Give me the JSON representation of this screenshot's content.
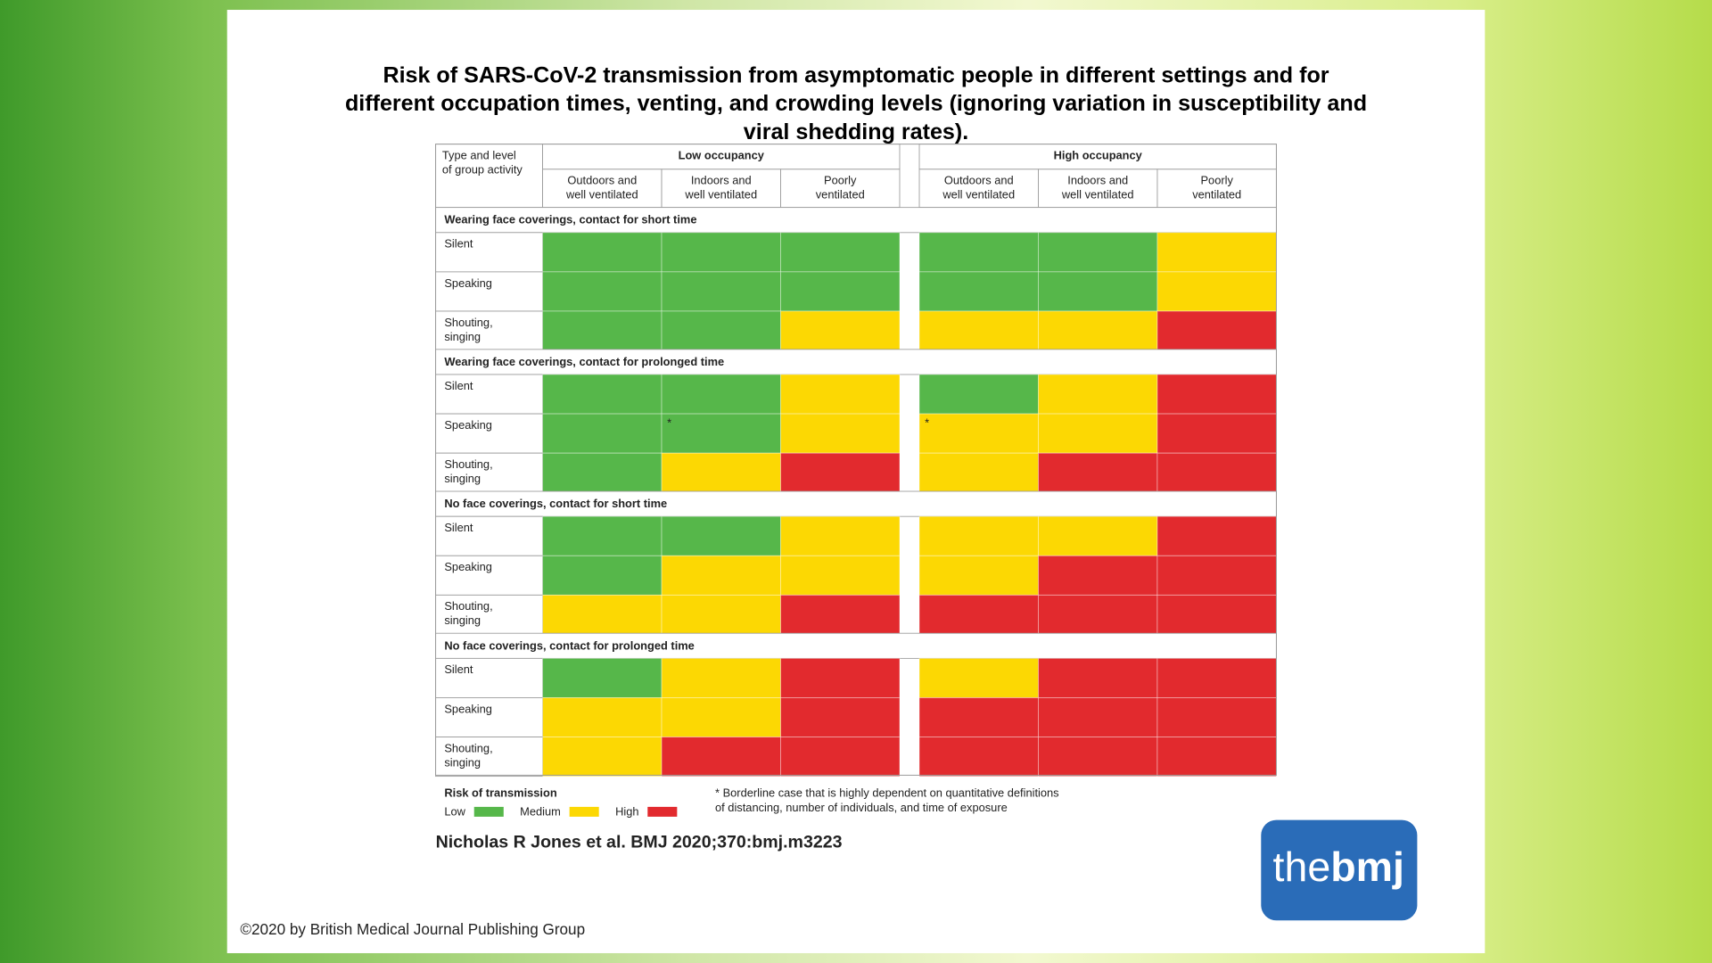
{
  "title": [
    "Risk of SARS-CoV-2 transmission from asymptomatic people in different settings and for",
    "different occupation times, venting, and crowding levels (ignoring variation in susceptibility  and",
    "viral shedding rates)."
  ],
  "table": {
    "corner": [
      "Type and level",
      "of group activity"
    ],
    "occupancy": [
      "Low occupancy",
      "High occupancy"
    ],
    "settings": [
      [
        "Outdoors and",
        "well ventilated"
      ],
      [
        "Indoors and",
        "well ventilated"
      ],
      [
        "Poorly",
        "ventilated"
      ]
    ],
    "activities": [
      [
        "Silent"
      ],
      [
        "Speaking"
      ],
      [
        "Shouting,",
        "singing"
      ]
    ],
    "groups": [
      {
        "name": "Wearing face coverings, contact for short time",
        "rows": [
          [
            0,
            0,
            0,
            0,
            0,
            1
          ],
          [
            0,
            0,
            0,
            0,
            0,
            1
          ],
          [
            0,
            0,
            1,
            1,
            1,
            2
          ]
        ]
      },
      {
        "name": "Wearing face coverings, contact for prolonged time",
        "rows": [
          [
            0,
            0,
            1,
            0,
            1,
            2
          ],
          [
            0,
            {
              "level": 0,
              "note": "*"
            },
            1,
            {
              "level": 1,
              "note": "*"
            },
            1,
            2
          ],
          [
            0,
            1,
            2,
            1,
            2,
            2
          ]
        ]
      },
      {
        "name": "No face coverings, contact for short time",
        "rows": [
          [
            0,
            0,
            1,
            1,
            1,
            2
          ],
          [
            0,
            1,
            1,
            1,
            2,
            2
          ],
          [
            1,
            1,
            2,
            2,
            2,
            2
          ]
        ]
      },
      {
        "name": "No face coverings, contact for prolonged time",
        "rows": [
          [
            0,
            1,
            2,
            1,
            2,
            2
          ],
          [
            1,
            1,
            2,
            2,
            2,
            2
          ],
          [
            1,
            2,
            2,
            2,
            2,
            2
          ]
        ]
      }
    ]
  },
  "legend": {
    "title": "Risk of transmission",
    "items": [
      {
        "label": "Low",
        "color": "#56b74a"
      },
      {
        "label": "Medium",
        "color": "#fcd803"
      },
      {
        "label": "High",
        "color": "#e22a2e"
      }
    ]
  },
  "footnote": [
    "* Borderline case that is highly dependent on quantitative definitions",
    "of distancing, number of individuals, and time of exposure"
  ],
  "citation": "Nicholas R Jones et al. BMJ 2020;370:bmj.m3223",
  "logo": [
    "the",
    "bmj"
  ],
  "copyright": "©2020 by British Medical Journal Publishing Group"
}
